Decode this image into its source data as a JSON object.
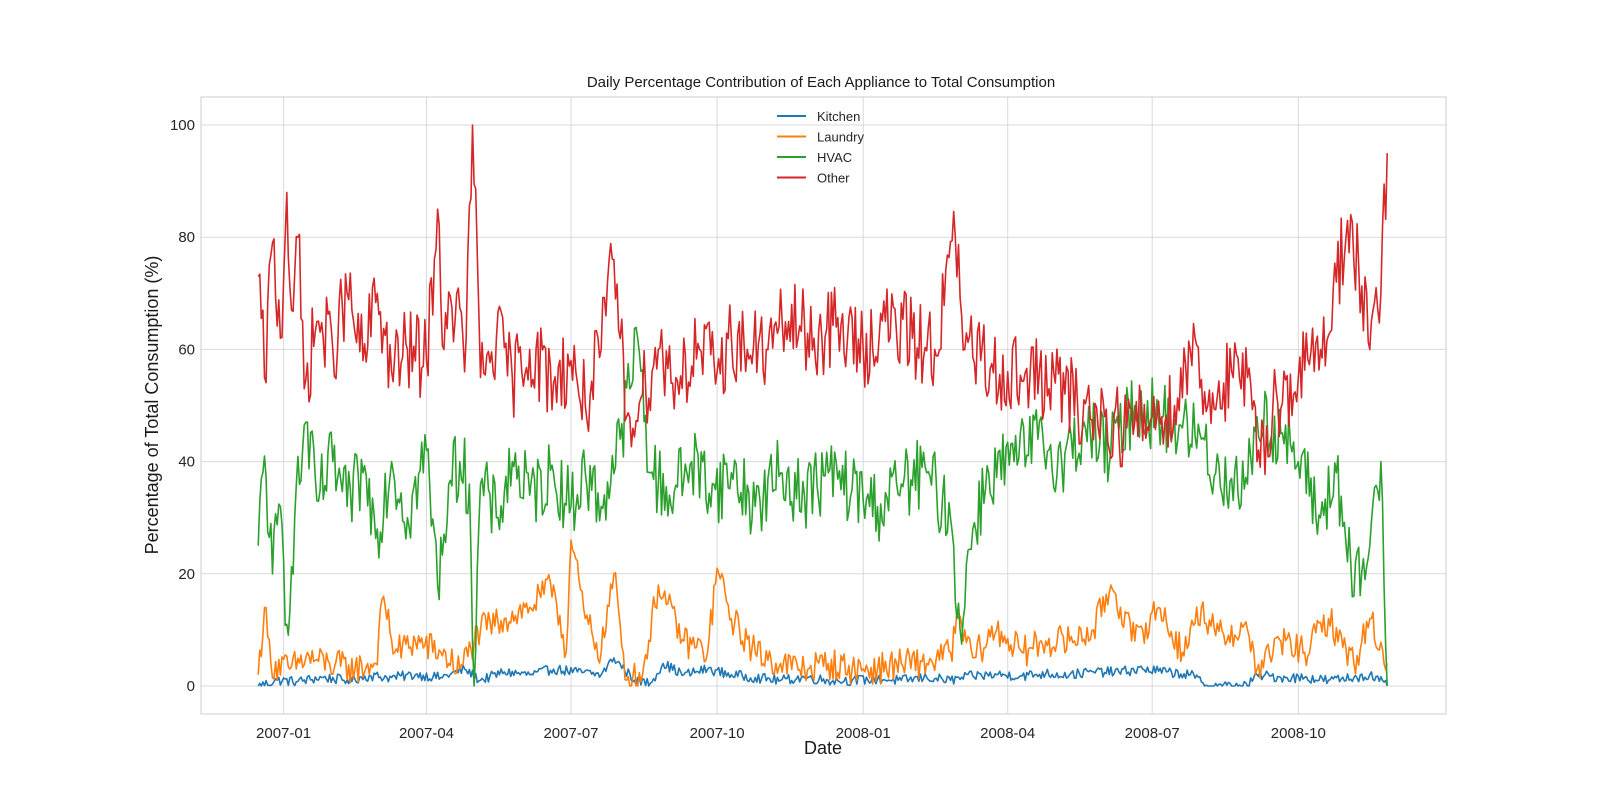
{
  "chart_data": {
    "type": "line",
    "title": "Daily Percentage Contribution of Each Appliance to Total Consumption",
    "xlabel": "Date",
    "ylabel": "Percentage of Total Consumption (%)",
    "x_range": [
      "2006-12-16",
      "2008-11-26"
    ],
    "xlim": [
      "2006-11-10",
      "2009-01-02"
    ],
    "ylim": [
      -5,
      105
    ],
    "x_ticks": [
      "2007-01",
      "2007-04",
      "2007-07",
      "2007-10",
      "2008-01",
      "2008-04",
      "2008-07",
      "2008-10"
    ],
    "y_ticks": [
      0,
      20,
      40,
      60,
      80,
      100
    ],
    "grid": true,
    "legend_position": "top-center",
    "series": [
      {
        "name": "Kitchen",
        "color": "#1f77b4",
        "points": [
          [
            "2006-12-16",
            0
          ],
          [
            "2006-12-28",
            1
          ],
          [
            "2007-01-10",
            0.8
          ],
          [
            "2007-01-25",
            1.5
          ],
          [
            "2007-02-10",
            1
          ],
          [
            "2007-02-25",
            1.8
          ],
          [
            "2007-03-10",
            1.5
          ],
          [
            "2007-03-25",
            2
          ],
          [
            "2007-04-10",
            1.5
          ],
          [
            "2007-04-25",
            3
          ],
          [
            "2007-05-05",
            1
          ],
          [
            "2007-05-20",
            2.5
          ],
          [
            "2007-06-05",
            2
          ],
          [
            "2007-06-20",
            3
          ],
          [
            "2007-07-05",
            2.5
          ],
          [
            "2007-07-20",
            2
          ],
          [
            "2007-07-28",
            5
          ],
          [
            "2007-08-10",
            1
          ],
          [
            "2007-08-20",
            0.5
          ],
          [
            "2007-08-28",
            4
          ],
          [
            "2007-09-10",
            2
          ],
          [
            "2007-09-25",
            3
          ],
          [
            "2007-10-10",
            2
          ],
          [
            "2007-10-25",
            1.5
          ],
          [
            "2007-11-10",
            1
          ],
          [
            "2007-11-25",
            1.5
          ],
          [
            "2007-12-10",
            1
          ],
          [
            "2007-12-25",
            1
          ],
          [
            "2008-01-10",
            1.2
          ],
          [
            "2008-01-25",
            1
          ],
          [
            "2008-02-10",
            1.5
          ],
          [
            "2008-02-25",
            1
          ],
          [
            "2008-03-10",
            1.8
          ],
          [
            "2008-03-25",
            2
          ],
          [
            "2008-04-10",
            1.8
          ],
          [
            "2008-04-25",
            2.2
          ],
          [
            "2008-05-10",
            2
          ],
          [
            "2008-05-25",
            2.5
          ],
          [
            "2008-06-10",
            2.5
          ],
          [
            "2008-06-25",
            3
          ],
          [
            "2008-07-10",
            2.5
          ],
          [
            "2008-07-25",
            2
          ],
          [
            "2008-08-05",
            0
          ],
          [
            "2008-08-20",
            0
          ],
          [
            "2008-08-30",
            0
          ],
          [
            "2008-09-05",
            2
          ],
          [
            "2008-09-20",
            1.5
          ],
          [
            "2008-10-05",
            1.5
          ],
          [
            "2008-10-20",
            1
          ],
          [
            "2008-11-05",
            1.5
          ],
          [
            "2008-11-15",
            2
          ],
          [
            "2008-11-26",
            0
          ]
        ]
      },
      {
        "name": "Laundry",
        "color": "#ff7f0e",
        "points": [
          [
            "2006-12-16",
            2
          ],
          [
            "2006-12-20",
            14
          ],
          [
            "2006-12-24",
            4
          ],
          [
            "2007-01-05",
            3
          ],
          [
            "2007-01-15",
            5
          ],
          [
            "2007-01-30",
            4
          ],
          [
            "2007-02-15",
            3
          ],
          [
            "2007-02-28",
            4
          ],
          [
            "2007-03-05",
            16
          ],
          [
            "2007-03-12",
            6
          ],
          [
            "2007-03-25",
            8
          ],
          [
            "2007-04-10",
            6
          ],
          [
            "2007-04-22",
            3
          ],
          [
            "2007-05-05",
            10
          ],
          [
            "2007-05-20",
            12
          ],
          [
            "2007-06-05",
            14
          ],
          [
            "2007-06-20",
            18
          ],
          [
            "2007-06-28",
            6
          ],
          [
            "2007-07-01",
            26
          ],
          [
            "2007-07-10",
            12
          ],
          [
            "2007-07-20",
            6
          ],
          [
            "2007-07-28",
            20
          ],
          [
            "2007-08-05",
            1
          ],
          [
            "2007-08-15",
            2
          ],
          [
            "2007-08-25",
            18
          ],
          [
            "2007-09-10",
            8
          ],
          [
            "2007-09-25",
            6
          ],
          [
            "2007-10-01",
            21
          ],
          [
            "2007-10-10",
            12
          ],
          [
            "2007-10-25",
            6
          ],
          [
            "2007-11-10",
            4
          ],
          [
            "2007-11-25",
            3
          ],
          [
            "2007-12-10",
            4
          ],
          [
            "2007-12-25",
            3
          ],
          [
            "2008-01-10",
            3
          ],
          [
            "2008-01-25",
            4
          ],
          [
            "2008-02-10",
            4
          ],
          [
            "2008-02-25",
            6
          ],
          [
            "2008-03-01",
            12
          ],
          [
            "2008-03-10",
            5
          ],
          [
            "2008-03-25",
            10
          ],
          [
            "2008-04-10",
            6
          ],
          [
            "2008-04-25",
            8
          ],
          [
            "2008-05-10",
            8
          ],
          [
            "2008-05-25",
            10
          ],
          [
            "2008-06-05",
            18
          ],
          [
            "2008-06-20",
            8
          ],
          [
            "2008-07-05",
            14
          ],
          [
            "2008-07-20",
            6
          ],
          [
            "2008-08-01",
            14
          ],
          [
            "2008-08-10",
            9
          ],
          [
            "2008-08-30",
            10
          ],
          [
            "2008-09-05",
            3
          ],
          [
            "2008-09-20",
            8
          ],
          [
            "2008-10-05",
            6
          ],
          [
            "2008-10-20",
            12
          ],
          [
            "2008-11-05",
            4
          ],
          [
            "2008-11-15",
            12
          ],
          [
            "2008-11-26",
            4
          ]
        ]
      },
      {
        "name": "HVAC",
        "color": "#2ca02c",
        "points": [
          [
            "2006-12-16",
            25
          ],
          [
            "2006-12-20",
            41
          ],
          [
            "2006-12-25",
            20
          ],
          [
            "2006-12-30",
            32
          ],
          [
            "2007-01-03",
            11
          ],
          [
            "2007-01-08",
            30
          ],
          [
            "2007-01-15",
            47
          ],
          [
            "2007-01-22",
            33
          ],
          [
            "2007-02-01",
            40
          ],
          [
            "2007-02-10",
            32
          ],
          [
            "2007-02-20",
            38
          ],
          [
            "2007-03-01",
            28
          ],
          [
            "2007-03-10",
            40
          ],
          [
            "2007-03-20",
            30
          ],
          [
            "2007-04-01",
            42
          ],
          [
            "2007-04-08",
            18
          ],
          [
            "2007-04-15",
            36
          ],
          [
            "2007-04-22",
            40
          ],
          [
            "2007-04-28",
            36
          ],
          [
            "2007-05-01",
            0
          ],
          [
            "2007-05-05",
            36
          ],
          [
            "2007-05-15",
            30
          ],
          [
            "2007-05-25",
            40
          ],
          [
            "2007-06-05",
            34
          ],
          [
            "2007-06-20",
            38
          ],
          [
            "2007-07-01",
            32
          ],
          [
            "2007-07-10",
            38
          ],
          [
            "2007-07-20",
            32
          ],
          [
            "2007-08-01",
            44
          ],
          [
            "2007-08-12",
            62
          ],
          [
            "2007-08-20",
            38
          ],
          [
            "2007-09-01",
            34
          ],
          [
            "2007-09-15",
            40
          ],
          [
            "2007-09-30",
            35
          ],
          [
            "2007-10-10",
            38
          ],
          [
            "2007-10-25",
            32
          ],
          [
            "2007-11-10",
            38
          ],
          [
            "2007-11-25",
            34
          ],
          [
            "2007-12-10",
            38
          ],
          [
            "2007-12-25",
            35
          ],
          [
            "2008-01-10",
            32
          ],
          [
            "2008-01-25",
            36
          ],
          [
            "2008-02-10",
            38
          ],
          [
            "2008-02-25",
            30
          ],
          [
            "2008-03-02",
            10
          ],
          [
            "2008-03-10",
            28
          ],
          [
            "2008-03-20",
            38
          ],
          [
            "2008-04-05",
            40
          ],
          [
            "2008-04-20",
            44
          ],
          [
            "2008-05-05",
            40
          ],
          [
            "2008-05-20",
            46
          ],
          [
            "2008-06-05",
            42
          ],
          [
            "2008-06-20",
            50
          ],
          [
            "2008-07-05",
            48
          ],
          [
            "2008-07-20",
            46
          ],
          [
            "2008-08-01",
            44
          ],
          [
            "2008-08-10",
            38
          ],
          [
            "2008-08-20",
            37
          ],
          [
            "2008-08-30",
            36
          ],
          [
            "2008-09-05",
            48
          ],
          [
            "2008-09-20",
            45
          ],
          [
            "2008-10-01",
            40
          ],
          [
            "2008-10-15",
            30
          ],
          [
            "2008-10-25",
            38
          ],
          [
            "2008-11-05",
            16
          ],
          [
            "2008-11-15",
            25
          ],
          [
            "2008-11-22",
            40
          ],
          [
            "2008-11-26",
            0
          ]
        ]
      },
      {
        "name": "Other",
        "color": "#d62728",
        "points": [
          [
            "2006-12-16",
            73
          ],
          [
            "2006-12-20",
            55
          ],
          [
            "2006-12-25",
            79
          ],
          [
            "2006-12-30",
            62
          ],
          [
            "2007-01-03",
            88
          ],
          [
            "2007-01-06",
            67
          ],
          [
            "2007-01-10",
            80
          ],
          [
            "2007-01-14",
            53
          ],
          [
            "2007-01-22",
            65
          ],
          [
            "2007-02-01",
            60
          ],
          [
            "2007-02-10",
            70
          ],
          [
            "2007-02-20",
            58
          ],
          [
            "2007-03-01",
            70
          ],
          [
            "2007-03-10",
            56
          ],
          [
            "2007-03-20",
            60
          ],
          [
            "2007-04-01",
            58
          ],
          [
            "2007-04-08",
            85
          ],
          [
            "2007-04-12",
            60
          ],
          [
            "2007-04-20",
            70
          ],
          [
            "2007-04-25",
            56
          ],
          [
            "2007-04-30",
            100
          ],
          [
            "2007-05-05",
            55
          ],
          [
            "2007-05-15",
            62
          ],
          [
            "2007-05-25",
            55
          ],
          [
            "2007-06-05",
            60
          ],
          [
            "2007-06-20",
            54
          ],
          [
            "2007-07-01",
            58
          ],
          [
            "2007-07-10",
            50
          ],
          [
            "2007-07-20",
            60
          ],
          [
            "2007-07-28",
            76
          ],
          [
            "2007-08-05",
            48
          ],
          [
            "2007-08-15",
            52
          ],
          [
            "2007-08-25",
            60
          ],
          [
            "2007-09-05",
            55
          ],
          [
            "2007-09-20",
            60
          ],
          [
            "2007-10-01",
            56
          ],
          [
            "2007-10-10",
            62
          ],
          [
            "2007-10-20",
            60
          ],
          [
            "2007-11-01",
            60
          ],
          [
            "2007-11-15",
            65
          ],
          [
            "2007-12-01",
            62
          ],
          [
            "2007-12-15",
            64
          ],
          [
            "2008-01-01",
            60
          ],
          [
            "2008-01-15",
            65
          ],
          [
            "2008-02-01",
            62
          ],
          [
            "2008-02-15",
            60
          ],
          [
            "2008-02-28",
            80
          ],
          [
            "2008-03-05",
            60
          ],
          [
            "2008-03-15",
            58
          ],
          [
            "2008-04-01",
            56
          ],
          [
            "2008-04-15",
            55
          ],
          [
            "2008-05-01",
            54
          ],
          [
            "2008-05-15",
            50
          ],
          [
            "2008-06-01",
            48
          ],
          [
            "2008-06-15",
            46
          ],
          [
            "2008-07-01",
            48
          ],
          [
            "2008-07-15",
            50
          ],
          [
            "2008-07-28",
            62
          ],
          [
            "2008-08-05",
            50
          ],
          [
            "2008-08-15",
            54
          ],
          [
            "2008-08-30",
            55
          ],
          [
            "2008-09-05",
            40
          ],
          [
            "2008-09-15",
            50
          ],
          [
            "2008-10-01",
            55
          ],
          [
            "2008-10-15",
            60
          ],
          [
            "2008-10-25",
            72
          ],
          [
            "2008-11-01",
            83
          ],
          [
            "2008-11-08",
            75
          ],
          [
            "2008-11-15",
            60
          ],
          [
            "2008-11-22",
            70
          ],
          [
            "2008-11-26",
            95
          ]
        ]
      }
    ]
  }
}
